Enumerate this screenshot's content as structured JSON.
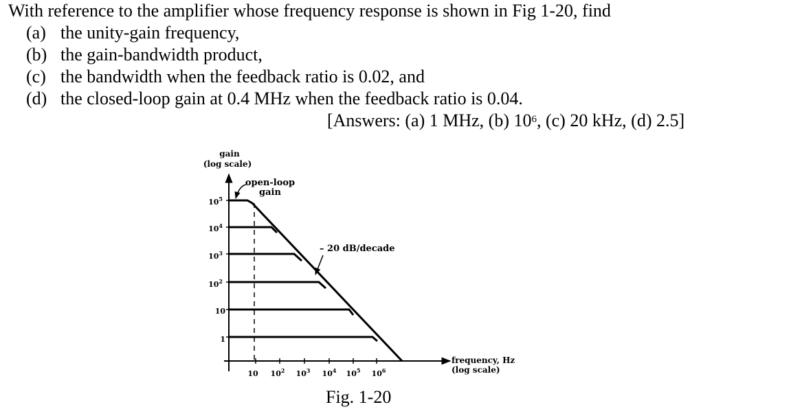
{
  "question": {
    "intro": "With reference to the amplifier whose frequency response is shown in Fig 1-20, find",
    "parts": [
      {
        "label": "(a)",
        "text": "the unity-gain frequency,"
      },
      {
        "label": "(b)",
        "text": "the gain-bandwidth product,"
      },
      {
        "label": "(c)",
        "text": "the bandwidth when the feedback ratio is 0.02, and"
      },
      {
        "label": "(d)",
        "text": "the closed-loop gain at 0.4 MHz when the feedback ratio is 0.04."
      }
    ],
    "answers": {
      "prefix": "[Answers: (a) 1 MHz, (b) 10",
      "exponent": "6",
      "suffix": ", (c) 20 kHz, (d) 2.5]"
    }
  },
  "figure": {
    "caption": "Fig. 1-20",
    "y_axis_label_line1": "gain",
    "y_axis_label_line2": "(log scale)",
    "x_axis_label_line1": "frequency, Hz",
    "x_axis_label_line2": "(log scale)",
    "open_loop_label_line1": "open-loop",
    "open_loop_label_line2": "gain",
    "slope_label": "– 20 dB/decade",
    "y_ticks": [
      {
        "base": "10",
        "exp": "5"
      },
      {
        "base": "10",
        "exp": "4"
      },
      {
        "base": "10",
        "exp": "3"
      },
      {
        "base": "10",
        "exp": "2"
      },
      {
        "base": "10",
        "exp": ""
      },
      {
        "base": "1",
        "exp": ""
      }
    ],
    "x_ticks": [
      {
        "base": "10",
        "exp": ""
      },
      {
        "base": "10",
        "exp": "2"
      },
      {
        "base": "10",
        "exp": "3"
      },
      {
        "base": "10",
        "exp": "4"
      },
      {
        "base": "10",
        "exp": "5"
      },
      {
        "base": "10",
        "exp": "6"
      }
    ]
  }
}
